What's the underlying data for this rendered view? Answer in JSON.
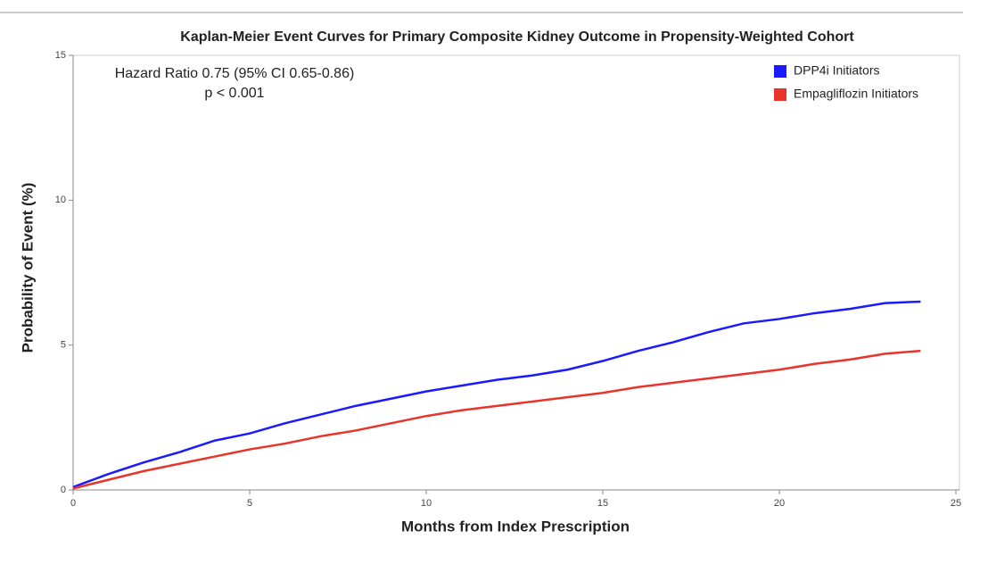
{
  "chart_data": {
    "type": "line",
    "title": "Kaplan-Meier Event Curves for Primary Composite Kidney Outcome in Propensity-Weighted Cohort",
    "annotations": [
      "Hazard Ratio 0.75 (95% CI 0.65-0.86)",
      "p < 0.001"
    ],
    "x_label": "Months from Index Prescription",
    "y_label": "Probability of Event (%)",
    "x": [
      0,
      1,
      2,
      3,
      4,
      5,
      6,
      7,
      8,
      9,
      10,
      11,
      12,
      13,
      14,
      15,
      16,
      17,
      18,
      19,
      20,
      21,
      22,
      23,
      24
    ],
    "series": [
      {
        "name": "DPP4i Initiators",
        "color": "#1a1aff",
        "values": [
          0.1,
          0.55,
          0.95,
          1.3,
          1.7,
          1.95,
          2.3,
          2.6,
          2.9,
          3.15,
          3.4,
          3.6,
          3.8,
          3.95,
          4.15,
          4.45,
          4.8,
          5.1,
          5.45,
          5.75,
          5.9,
          6.1,
          6.25,
          6.45,
          6.5
        ]
      },
      {
        "name": "Empagliflozin Initiators",
        "color": "#e8342a",
        "values": [
          0.05,
          0.35,
          0.65,
          0.9,
          1.15,
          1.4,
          1.6,
          1.85,
          2.05,
          2.3,
          2.55,
          2.75,
          2.9,
          3.05,
          3.2,
          3.35,
          3.55,
          3.7,
          3.85,
          4.0,
          4.15,
          4.35,
          4.5,
          4.7,
          4.8
        ]
      }
    ],
    "xlim": [
      0,
      25
    ],
    "xticks": [
      0,
      5,
      10,
      15,
      20,
      25
    ],
    "ylim": [
      0,
      15
    ],
    "yticks": [
      0,
      5,
      10,
      15
    ],
    "legend": "top-right"
  }
}
